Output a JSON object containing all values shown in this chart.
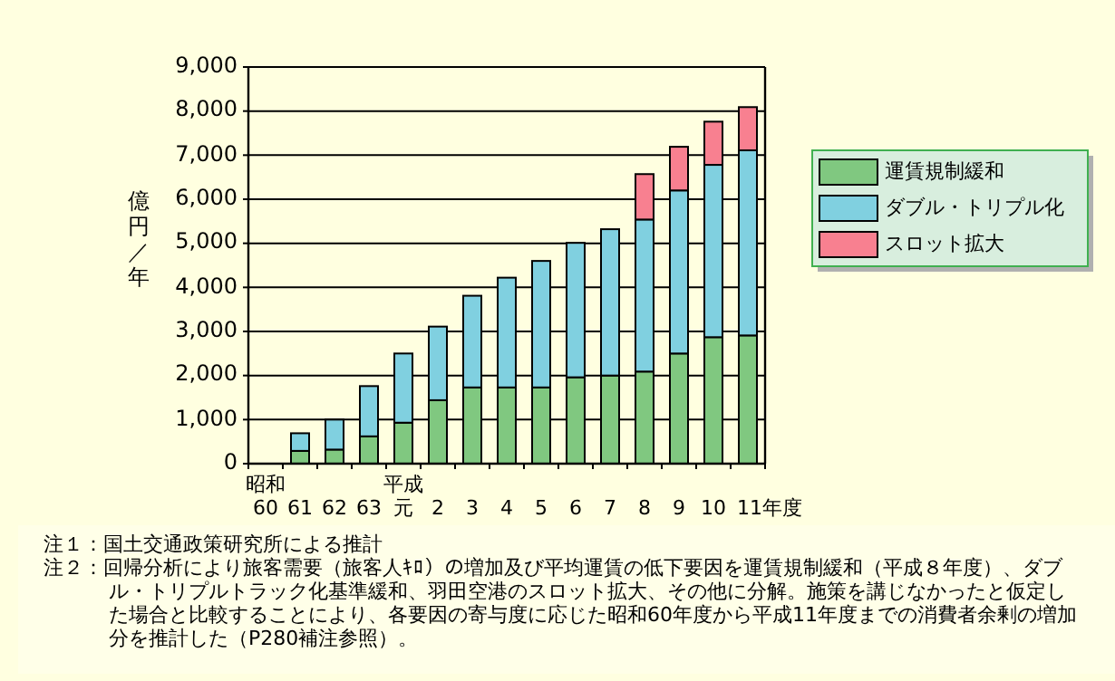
{
  "chart_data": {
    "type": "bar",
    "stacked": true,
    "ylabel": "億円／年",
    "categories": [
      "昭和60",
      "61",
      "62",
      "63",
      "平成元",
      "2",
      "3",
      "4",
      "5",
      "6",
      "7",
      "8",
      "9",
      "10",
      "11年度"
    ],
    "series": [
      {
        "name": "運賃規制緩和",
        "color": "#80c880",
        "values": [
          0,
          290,
          320,
          620,
          930,
          1440,
          1730,
          1730,
          1730,
          1960,
          2000,
          2090,
          2500,
          2870,
          2910
        ]
      },
      {
        "name": "ダブル・トリプル化",
        "color": "#80d0e0",
        "values": [
          0,
          400,
          680,
          1140,
          1570,
          1670,
          2080,
          2490,
          2870,
          3050,
          3320,
          3450,
          3700,
          3910,
          4200
        ]
      },
      {
        "name": "スロット拡大",
        "color": "#f88090",
        "values": [
          null,
          null,
          null,
          null,
          null,
          null,
          null,
          null,
          null,
          null,
          null,
          1030,
          990,
          980,
          980
        ]
      }
    ],
    "ylim": [
      0,
      9000
    ],
    "yticks": [
      {
        "value": 0,
        "label": "0"
      },
      {
        "value": 1000,
        "label": "1,000"
      },
      {
        "value": 2000,
        "label": "2,000"
      },
      {
        "value": 3000,
        "label": "3,000"
      },
      {
        "value": 4000,
        "label": "4,000"
      },
      {
        "value": 5000,
        "label": "5,000"
      },
      {
        "value": 6000,
        "label": "6,000"
      },
      {
        "value": 7000,
        "label": "7,000"
      },
      {
        "value": 8000,
        "label": "8,000"
      },
      {
        "value": 9000,
        "label": "9,000"
      }
    ],
    "grid": "y",
    "legend": "right",
    "annotations": [
      "注１：国土交通政策研究所による推計",
      "注２：回帰分析により旅客需要（旅客人ｷﾛ）の増加及び平均運賃の低下要因を運賃規制緩和（平成８年度）、ダブル・トリプルトラック化基準緩和、羽田空港のスロット拡大、その他に分解。施策を講じなかったと仮定した場合と比較することにより、各要因の寄与度に応じた昭和60年度から平成11年度までの消費者余剰の増加分を推計した（P280補注参照）。"
    ]
  }
}
